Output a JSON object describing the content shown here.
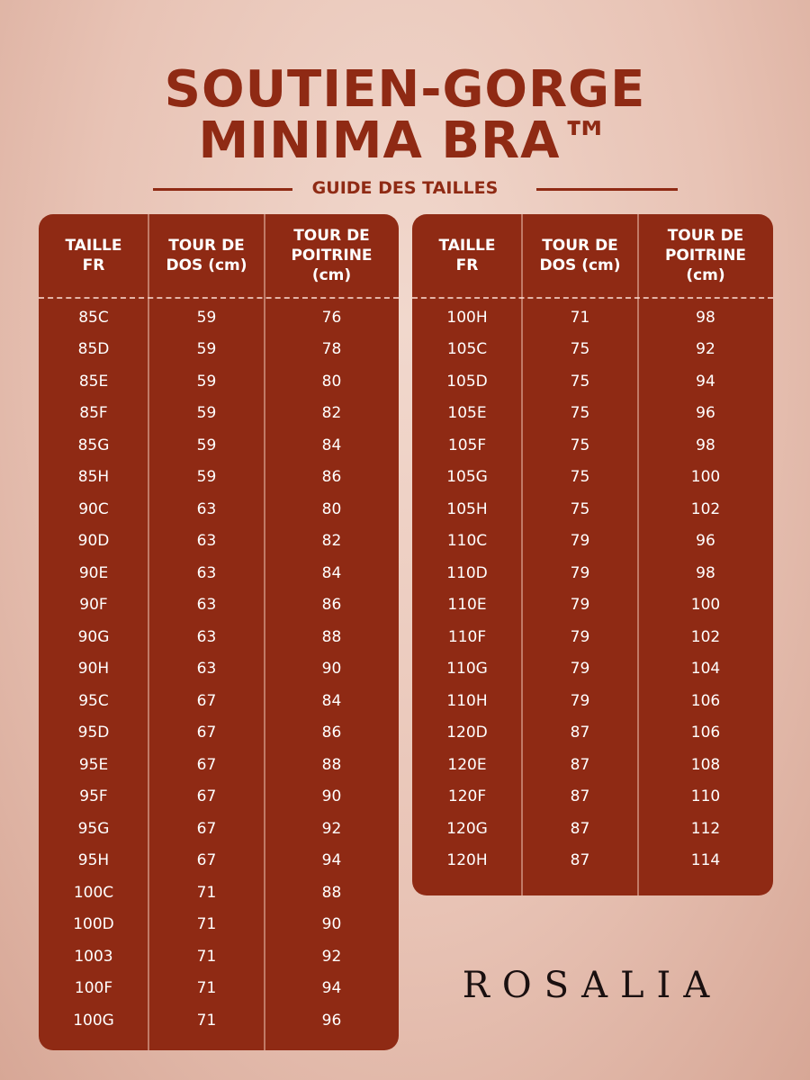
{
  "title_line1": "SOUTIEN-GORGE",
  "title_line2": "MINIMA BRA™",
  "subtitle": "GUIDE DES TAILLES",
  "brand": "ROSALIA",
  "colors": {
    "primary": "#8f2a14",
    "text_on_primary": "#ffffff"
  },
  "headers": [
    "TAILLE FR",
    "TOUR DE DOS (cm)",
    "TOUR DE POITRINE (cm)"
  ],
  "left_table": [
    [
      "85C",
      "59",
      "76"
    ],
    [
      "85D",
      "59",
      "78"
    ],
    [
      "85E",
      "59",
      "80"
    ],
    [
      "85F",
      "59",
      "82"
    ],
    [
      "85G",
      "59",
      "84"
    ],
    [
      "85H",
      "59",
      "86"
    ],
    [
      "90C",
      "63",
      "80"
    ],
    [
      "90D",
      "63",
      "82"
    ],
    [
      "90E",
      "63",
      "84"
    ],
    [
      "90F",
      "63",
      "86"
    ],
    [
      "90G",
      "63",
      "88"
    ],
    [
      "90H",
      "63",
      "90"
    ],
    [
      "95C",
      "67",
      "84"
    ],
    [
      "95D",
      "67",
      "86"
    ],
    [
      "95E",
      "67",
      "88"
    ],
    [
      "95F",
      "67",
      "90"
    ],
    [
      "95G",
      "67",
      "92"
    ],
    [
      "95H",
      "67",
      "94"
    ],
    [
      "100C",
      "71",
      "88"
    ],
    [
      "100D",
      "71",
      "90"
    ],
    [
      "1003",
      "71",
      "92"
    ],
    [
      "100F",
      "71",
      "94"
    ],
    [
      "100G",
      "71",
      "96"
    ]
  ],
  "right_table": [
    [
      "100H",
      "71",
      "98"
    ],
    [
      "105C",
      "75",
      "92"
    ],
    [
      "105D",
      "75",
      "94"
    ],
    [
      "105E",
      "75",
      "96"
    ],
    [
      "105F",
      "75",
      "98"
    ],
    [
      "105G",
      "75",
      "100"
    ],
    [
      "105H",
      "75",
      "102"
    ],
    [
      "110C",
      "79",
      "96"
    ],
    [
      "110D",
      "79",
      "98"
    ],
    [
      "110E",
      "79",
      "100"
    ],
    [
      "110F",
      "79",
      "102"
    ],
    [
      "110G",
      "79",
      "104"
    ],
    [
      "110H",
      "79",
      "106"
    ],
    [
      "120D",
      "87",
      "106"
    ],
    [
      "120E",
      "87",
      "108"
    ],
    [
      "120F",
      "87",
      "110"
    ],
    [
      "120G",
      "87",
      "112"
    ],
    [
      "120H",
      "87",
      "114"
    ]
  ]
}
